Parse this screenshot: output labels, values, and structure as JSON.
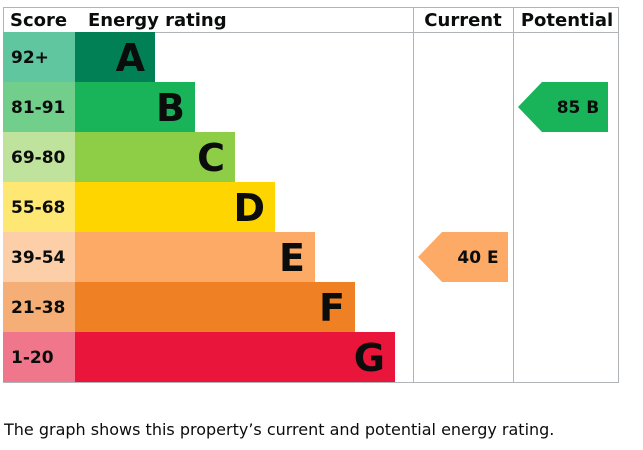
{
  "chart_data": {
    "type": "bar",
    "headers": {
      "score": "Score",
      "energy_rating": "Energy rating",
      "current": "Current",
      "potential": "Potential"
    },
    "bands": [
      {
        "score_range": "92+",
        "letter": "A",
        "min": 92,
        "max": 100,
        "color": "#008054",
        "light_color": "#5fc6a0"
      },
      {
        "score_range": "81-91",
        "letter": "B",
        "min": 81,
        "max": 91,
        "color": "#19b459",
        "light_color": "#72cf8b"
      },
      {
        "score_range": "69-80",
        "letter": "C",
        "min": 69,
        "max": 80,
        "color": "#8dce46",
        "light_color": "#bfe39c"
      },
      {
        "score_range": "55-68",
        "letter": "D",
        "min": 55,
        "max": 68,
        "color": "#ffd500",
        "light_color": "#ffe773"
      },
      {
        "score_range": "39-54",
        "letter": "E",
        "min": 39,
        "max": 54,
        "color": "#fcaa65",
        "light_color": "#fdcfa8"
      },
      {
        "score_range": "21-38",
        "letter": "F",
        "min": 21,
        "max": 38,
        "color": "#ef8023",
        "light_color": "#f5ae75"
      },
      {
        "score_range": "1-20",
        "letter": "G",
        "min": 1,
        "max": 20,
        "color": "#e9153b",
        "light_color": "#f0768b"
      }
    ],
    "current": {
      "value": 40,
      "letter": "E",
      "label": "40 E",
      "color": "#fcaa65"
    },
    "potential": {
      "value": 85,
      "letter": "B",
      "label": "85 B",
      "color": "#19b459"
    }
  },
  "caption": "The graph shows this property’s current and potential energy rating."
}
